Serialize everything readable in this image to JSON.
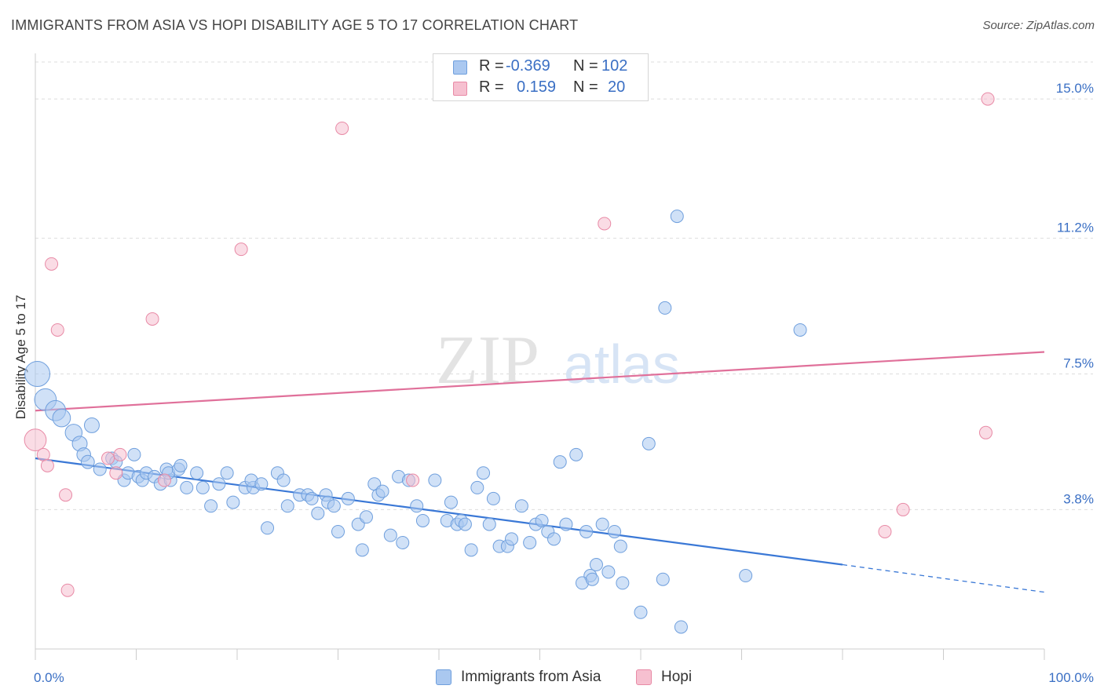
{
  "title": "IMMIGRANTS FROM ASIA VS HOPI DISABILITY AGE 5 TO 17 CORRELATION CHART",
  "source": "Source: ZipAtlas.com",
  "watermark": {
    "zip": "ZIP",
    "atlas": "atlas"
  },
  "colors": {
    "blue_fill": "#aac8f0",
    "blue_stroke": "#6f9fdd",
    "blue_line": "#3a78d6",
    "pink_fill": "#f6c0d0",
    "pink_stroke": "#e88aa6",
    "pink_line": "#e0709a",
    "axis_label": "#3a6fc4",
    "grid": "#dddddd"
  },
  "legend_top": {
    "rows": [
      {
        "series": "blue",
        "r_label": "R =",
        "r_value": "-0.369",
        "n_label": "N =",
        "n_value": "102"
      },
      {
        "series": "pink",
        "r_label": "R =",
        "r_value": "0.159",
        "n_label": "N =",
        "n_value": "20"
      }
    ]
  },
  "legend_bottom": [
    {
      "series": "blue",
      "label": "Immigrants from Asia"
    },
    {
      "series": "pink",
      "label": "Hopi"
    }
  ],
  "chart_data": {
    "type": "scatter",
    "title": "IMMIGRANTS FROM ASIA VS HOPI DISABILITY AGE 5 TO 17 CORRELATION CHART",
    "xlabel": "",
    "ylabel": "Disability Age 5 to 17",
    "xlim": [
      0,
      100
    ],
    "ylim": [
      0,
      16.2
    ],
    "x_tick_labels": [
      "0.0%",
      "100.0%"
    ],
    "y_ticks": [
      {
        "value": 3.8,
        "label": "3.8%"
      },
      {
        "value": 7.5,
        "label": "7.5%"
      },
      {
        "value": 11.2,
        "label": "11.2%"
      },
      {
        "value": 15.0,
        "label": "15.0%"
      }
    ],
    "grid": true,
    "series": [
      {
        "name": "Immigrants from Asia",
        "color": "blue",
        "r": -0.369,
        "n": 102,
        "trend": {
          "x0": 0,
          "y0": 5.2,
          "x1": 80,
          "y1": 2.3,
          "dash_to_x": 100,
          "dash_to_y": 1.55
        },
        "points": [
          [
            0.2,
            7.5,
            4
          ],
          [
            1.0,
            6.8,
            3
          ],
          [
            2.0,
            6.5,
            2.6
          ],
          [
            2.6,
            6.3,
            2
          ],
          [
            3.8,
            5.9,
            1.8
          ],
          [
            5.6,
            6.1,
            1.4
          ],
          [
            4.4,
            5.6,
            1.4
          ],
          [
            4.8,
            5.3,
            1.2
          ],
          [
            5.2,
            5.1,
            1.1
          ],
          [
            6.4,
            4.9,
            1
          ],
          [
            7.6,
            5.2,
            1
          ],
          [
            8.0,
            5.1,
            1
          ],
          [
            9.8,
            5.3,
            1
          ],
          [
            8.8,
            4.6,
            1
          ],
          [
            9.2,
            4.8,
            1
          ],
          [
            10.2,
            4.7,
            1
          ],
          [
            10.6,
            4.6,
            1
          ],
          [
            11.0,
            4.8,
            1
          ],
          [
            11.8,
            4.7,
            1
          ],
          [
            12.4,
            4.5,
            1
          ],
          [
            13.0,
            4.9,
            1
          ],
          [
            13.4,
            4.6,
            1
          ],
          [
            13.2,
            4.8,
            1
          ],
          [
            14.2,
            4.9,
            1
          ],
          [
            14.4,
            5.0,
            1
          ],
          [
            15.0,
            4.4,
            1
          ],
          [
            16.0,
            4.8,
            1
          ],
          [
            16.6,
            4.4,
            1
          ],
          [
            17.4,
            3.9,
            1
          ],
          [
            18.2,
            4.5,
            1
          ],
          [
            19.0,
            4.8,
            1
          ],
          [
            19.6,
            4.0,
            1
          ],
          [
            20.8,
            4.4,
            1
          ],
          [
            21.6,
            4.4,
            1
          ],
          [
            21.4,
            4.6,
            1
          ],
          [
            22.4,
            4.5,
            1
          ],
          [
            23.0,
            3.3,
            1
          ],
          [
            24.0,
            4.8,
            1
          ],
          [
            24.6,
            4.6,
            1
          ],
          [
            25.0,
            3.9,
            1
          ],
          [
            26.2,
            4.2,
            1
          ],
          [
            27.0,
            4.2,
            1
          ],
          [
            27.4,
            4.1,
            1
          ],
          [
            28.0,
            3.7,
            1
          ],
          [
            28.8,
            4.2,
            1
          ],
          [
            29.0,
            4.0,
            1
          ],
          [
            29.6,
            3.9,
            1
          ],
          [
            30.0,
            3.2,
            1
          ],
          [
            31.0,
            4.1,
            1
          ],
          [
            32.0,
            3.4,
            1
          ],
          [
            32.4,
            2.7,
            1
          ],
          [
            32.8,
            3.6,
            1
          ],
          [
            33.6,
            4.5,
            1
          ],
          [
            34.0,
            4.2,
            1
          ],
          [
            34.4,
            4.3,
            1
          ],
          [
            35.2,
            3.1,
            1
          ],
          [
            36.0,
            4.7,
            1
          ],
          [
            36.4,
            2.9,
            1
          ],
          [
            37.0,
            4.6,
            1
          ],
          [
            37.8,
            3.9,
            1
          ],
          [
            38.4,
            3.5,
            1
          ],
          [
            39.6,
            4.6,
            1
          ],
          [
            40.8,
            3.5,
            1
          ],
          [
            41.2,
            4.0,
            1
          ],
          [
            41.8,
            3.4,
            1
          ],
          [
            42.2,
            3.5,
            1
          ],
          [
            42.6,
            3.4,
            1
          ],
          [
            43.2,
            2.7,
            1
          ],
          [
            43.8,
            4.4,
            1
          ],
          [
            44.4,
            4.8,
            1
          ],
          [
            45.0,
            3.4,
            1
          ],
          [
            45.4,
            4.1,
            1
          ],
          [
            46.0,
            2.8,
            1
          ],
          [
            46.8,
            2.8,
            1
          ],
          [
            47.2,
            3.0,
            1
          ],
          [
            48.2,
            3.9,
            1
          ],
          [
            49.0,
            2.9,
            1
          ],
          [
            49.6,
            3.4,
            1
          ],
          [
            50.2,
            3.5,
            1
          ],
          [
            50.8,
            3.2,
            1
          ],
          [
            51.4,
            3.0,
            1
          ],
          [
            52.0,
            5.1,
            1
          ],
          [
            52.6,
            3.4,
            1
          ],
          [
            53.6,
            5.3,
            1
          ],
          [
            54.6,
            3.2,
            1
          ],
          [
            55.6,
            2.3,
            1
          ],
          [
            55.0,
            2.0,
            1
          ],
          [
            54.2,
            1.8,
            1
          ],
          [
            55.2,
            1.9,
            1
          ],
          [
            56.2,
            3.4,
            1
          ],
          [
            56.8,
            2.1,
            1
          ],
          [
            57.4,
            3.2,
            1
          ],
          [
            58.0,
            2.8,
            1
          ],
          [
            58.2,
            1.8,
            1
          ],
          [
            60.8,
            5.6,
            1
          ],
          [
            60.0,
            1.0,
            1
          ],
          [
            62.2,
            1.9,
            1
          ],
          [
            62.4,
            9.3,
            1
          ],
          [
            63.6,
            11.8,
            1
          ],
          [
            64.0,
            0.6,
            1
          ],
          [
            70.4,
            2.0,
            1
          ],
          [
            75.8,
            8.7,
            1
          ]
        ]
      },
      {
        "name": "Hopi",
        "color": "pink",
        "r": 0.159,
        "n": 20,
        "trend": {
          "x0": 0,
          "y0": 6.5,
          "x1": 100,
          "y1": 8.1
        },
        "points": [
          [
            0.0,
            5.7,
            3
          ],
          [
            0.8,
            5.3,
            1
          ],
          [
            1.2,
            5.0,
            1
          ],
          [
            1.6,
            10.5,
            1
          ],
          [
            2.2,
            8.7,
            1
          ],
          [
            3.0,
            4.2,
            1
          ],
          [
            3.2,
            1.6,
            1
          ],
          [
            7.2,
            5.2,
            1
          ],
          [
            8.0,
            4.8,
            1
          ],
          [
            8.4,
            5.3,
            1
          ],
          [
            11.6,
            9.0,
            1
          ],
          [
            12.8,
            4.6,
            1
          ],
          [
            20.4,
            10.9,
            1
          ],
          [
            30.4,
            14.2,
            1
          ],
          [
            37.4,
            4.6,
            1
          ],
          [
            56.4,
            11.6,
            1
          ],
          [
            84.2,
            3.2,
            1
          ],
          [
            86.0,
            3.8,
            1
          ],
          [
            94.2,
            5.9,
            1
          ],
          [
            94.4,
            15.0,
            1
          ]
        ]
      }
    ]
  }
}
